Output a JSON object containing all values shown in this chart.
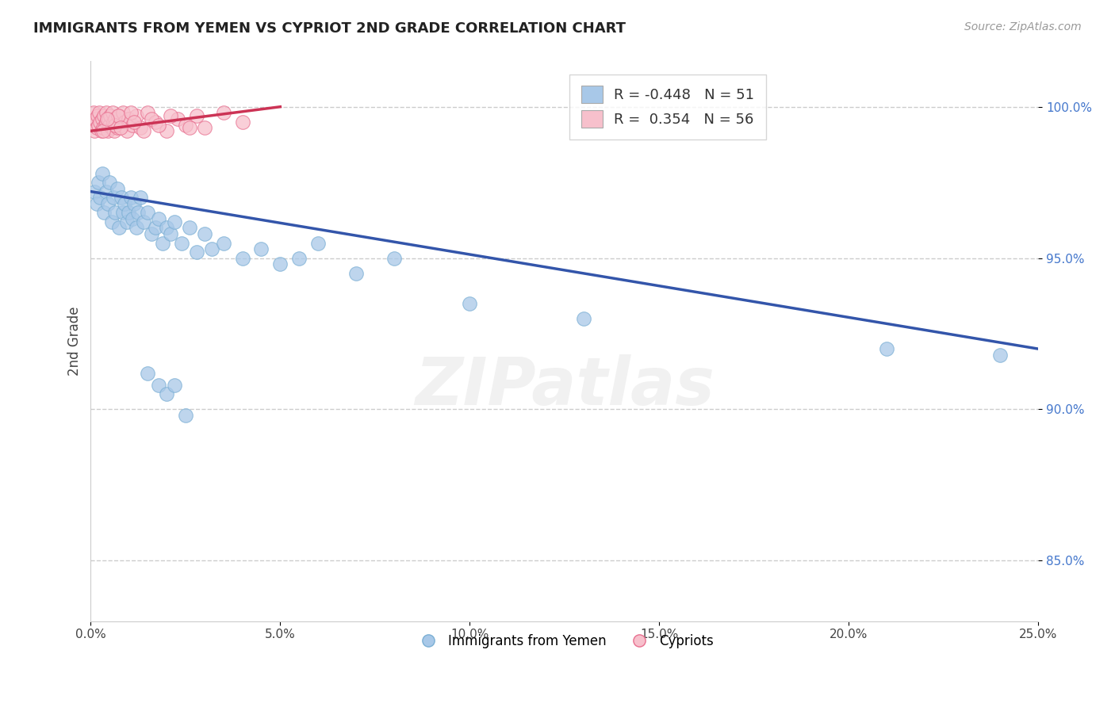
{
  "title": "IMMIGRANTS FROM YEMEN VS CYPRIOT 2ND GRADE CORRELATION CHART",
  "source_text": "Source: ZipAtlas.com",
  "ylabel": "2nd Grade",
  "xlim": [
    0.0,
    25.0
  ],
  "ylim": [
    83.0,
    101.5
  ],
  "legend_blue_r": "-0.448",
  "legend_blue_n": "51",
  "legend_pink_r": "0.354",
  "legend_pink_n": "56",
  "legend_label_blue": "Immigrants from Yemen",
  "legend_label_pink": "Cypriots",
  "blue_color": "#a8c8e8",
  "blue_edge_color": "#7bafd4",
  "pink_color": "#f7c0cc",
  "pink_edge_color": "#e87090",
  "blue_line_color": "#3355aa",
  "pink_line_color": "#cc3355",
  "blue_scatter_x": [
    0.1,
    0.15,
    0.2,
    0.25,
    0.3,
    0.35,
    0.4,
    0.45,
    0.5,
    0.55,
    0.6,
    0.65,
    0.7,
    0.75,
    0.8,
    0.85,
    0.9,
    0.95,
    1.0,
    1.05,
    1.1,
    1.15,
    1.2,
    1.25,
    1.3,
    1.4,
    1.5,
    1.6,
    1.7,
    1.8,
    1.9,
    2.0,
    2.1,
    2.2,
    2.4,
    2.6,
    2.8,
    3.0,
    3.2,
    3.5,
    4.0,
    4.5,
    5.0,
    5.5,
    6.0,
    7.0,
    8.0,
    10.0,
    13.0,
    21.0,
    24.0
  ],
  "blue_scatter_y": [
    97.2,
    96.8,
    97.5,
    97.0,
    97.8,
    96.5,
    97.2,
    96.8,
    97.5,
    96.2,
    97.0,
    96.5,
    97.3,
    96.0,
    97.0,
    96.5,
    96.8,
    96.2,
    96.5,
    97.0,
    96.3,
    96.8,
    96.0,
    96.5,
    97.0,
    96.2,
    96.5,
    95.8,
    96.0,
    96.3,
    95.5,
    96.0,
    95.8,
    96.2,
    95.5,
    96.0,
    95.2,
    95.8,
    95.3,
    95.5,
    95.0,
    95.3,
    94.8,
    95.0,
    95.5,
    94.5,
    95.0,
    93.5,
    93.0,
    92.0,
    91.8
  ],
  "blue_outliers_x": [
    1.5,
    1.8,
    2.0,
    2.2,
    2.5
  ],
  "blue_outliers_y": [
    91.2,
    90.8,
    90.5,
    90.8,
    89.8
  ],
  "pink_scatter_x": [
    0.05,
    0.08,
    0.1,
    0.12,
    0.15,
    0.18,
    0.2,
    0.22,
    0.25,
    0.28,
    0.3,
    0.32,
    0.35,
    0.38,
    0.4,
    0.42,
    0.45,
    0.48,
    0.5,
    0.52,
    0.55,
    0.58,
    0.6,
    0.62,
    0.65,
    0.7,
    0.75,
    0.8,
    0.85,
    0.9,
    0.95,
    1.0,
    1.1,
    1.2,
    1.3,
    1.5,
    1.7,
    2.0,
    2.3,
    2.5,
    2.8,
    3.0,
    3.5,
    4.0,
    1.4,
    1.6,
    0.65,
    0.72,
    0.78,
    1.05,
    1.15,
    0.33,
    0.44,
    1.8,
    2.1,
    2.6
  ],
  "pink_scatter_y": [
    99.5,
    99.8,
    99.2,
    99.6,
    99.3,
    99.7,
    99.4,
    99.8,
    99.5,
    99.2,
    99.6,
    99.3,
    99.7,
    99.4,
    99.8,
    99.5,
    99.2,
    99.6,
    99.4,
    99.7,
    99.3,
    99.8,
    99.5,
    99.2,
    99.6,
    99.3,
    99.7,
    99.4,
    99.8,
    99.5,
    99.2,
    99.6,
    99.4,
    99.7,
    99.3,
    99.8,
    99.5,
    99.2,
    99.6,
    99.4,
    99.7,
    99.3,
    99.8,
    99.5,
    99.2,
    99.6,
    99.4,
    99.7,
    99.3,
    99.8,
    99.5,
    99.2,
    99.6,
    99.4,
    99.7,
    99.3
  ],
  "grid_color": "#cccccc",
  "bg_color": "#ffffff",
  "watermark_text": "ZIPatlas",
  "yticks": [
    85.0,
    90.0,
    95.0,
    100.0
  ],
  "ytick_labels": [
    "85.0%",
    "90.0%",
    "95.0%",
    "100.0%"
  ],
  "xticks": [
    0.0,
    5.0,
    10.0,
    15.0,
    20.0,
    25.0
  ],
  "xtick_labels": [
    "0.0%",
    "5.0%",
    "10.0%",
    "15.0%",
    "20.0%",
    "25.0%"
  ],
  "blue_line_x": [
    0.0,
    25.0
  ],
  "blue_line_y": [
    97.2,
    92.0
  ],
  "pink_line_x": [
    0.0,
    5.0
  ],
  "pink_line_y": [
    99.2,
    100.0
  ]
}
